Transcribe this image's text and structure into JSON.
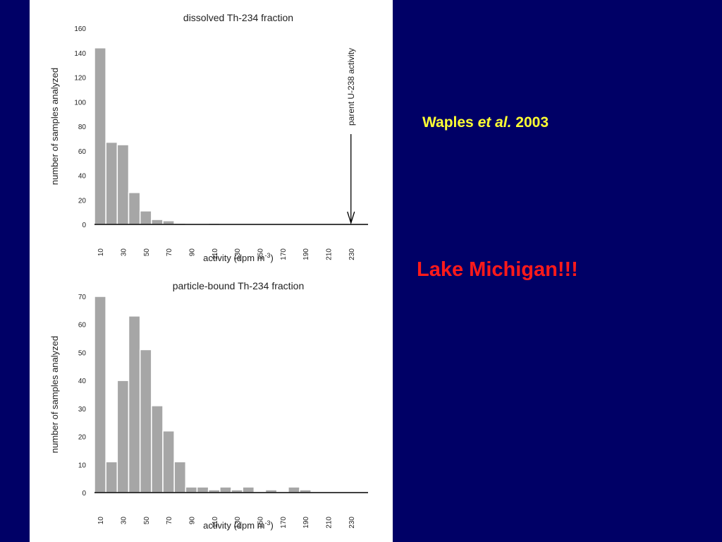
{
  "chart_data": [
    {
      "type": "bar",
      "title": "dissolved Th-234 fraction",
      "xlabel": "activity (dpm m",
      "xlabel_sup": "-3",
      "xlabel_close": ")",
      "ylabel": "number of samples analyzed",
      "x_ticks": [
        10,
        30,
        50,
        70,
        90,
        110,
        130,
        150,
        170,
        190,
        210,
        230
      ],
      "y_ticks": [
        0,
        20,
        40,
        60,
        80,
        100,
        120,
        140,
        160
      ],
      "ylim": [
        0,
        160
      ],
      "xlim": [
        5,
        245
      ],
      "bin_width": 10,
      "bins": [
        10,
        20,
        30,
        40,
        50,
        60,
        70,
        80,
        110
      ],
      "values": [
        144,
        67,
        65,
        26,
        11,
        4,
        3,
        1,
        1
      ],
      "annotation": {
        "text": "parent U-238 activity",
        "x": 230
      }
    },
    {
      "type": "bar",
      "title": "particle-bound Th-234 fraction",
      "xlabel": "activity (dpm m",
      "xlabel_sup": "-3",
      "xlabel_close": ")",
      "ylabel": "number of samples analyzed",
      "x_ticks": [
        10,
        30,
        50,
        70,
        90,
        110,
        130,
        150,
        170,
        190,
        210,
        230
      ],
      "y_ticks": [
        0,
        10,
        20,
        30,
        40,
        50,
        60,
        70
      ],
      "ylim": [
        0,
        70
      ],
      "xlim": [
        5,
        245
      ],
      "bin_width": 10,
      "bins": [
        10,
        20,
        30,
        40,
        50,
        60,
        70,
        80,
        90,
        100,
        110,
        120,
        130,
        140,
        160,
        180,
        190
      ],
      "values": [
        70,
        11,
        40,
        63,
        51,
        31,
        22,
        11,
        2,
        2,
        1,
        2,
        1,
        2,
        1,
        2,
        1
      ]
    }
  ],
  "citation": {
    "author": "Waples",
    "etal": "et al.",
    "year": "2003"
  },
  "headline": "Lake Michigan!!!"
}
